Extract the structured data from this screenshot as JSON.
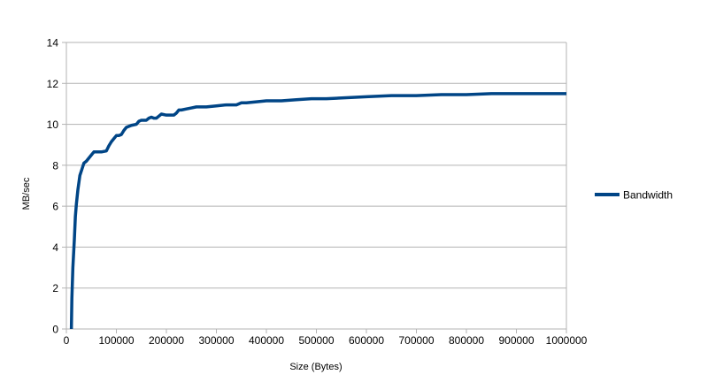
{
  "chart_data": {
    "type": "line",
    "title": "",
    "xlabel": "Size (Bytes)",
    "ylabel": "MB/sec",
    "xlim": [
      0,
      1000000
    ],
    "ylim": [
      0,
      14
    ],
    "x_ticks": [
      0,
      100000,
      200000,
      300000,
      400000,
      500000,
      600000,
      700000,
      800000,
      900000,
      1000000
    ],
    "y_ticks": [
      0,
      2,
      4,
      6,
      8,
      10,
      12,
      14
    ],
    "x_tick_labels": [
      "0",
      "100000",
      "200000",
      "300000",
      "400000",
      "500000",
      "600000",
      "700000",
      "800000",
      "900000",
      "1000000"
    ],
    "y_tick_labels": [
      "0",
      "2",
      "4",
      "6",
      "8",
      "10",
      "12",
      "14"
    ],
    "grid": "horizontal",
    "legend_position": "right",
    "series": [
      {
        "name": "Bandwidth",
        "color": "#004586",
        "x": [
          10000,
          11000,
          13000,
          16000,
          18000,
          20000,
          23000,
          27000,
          31000,
          35000,
          40000,
          45000,
          50000,
          55000,
          60000,
          70000,
          80000,
          85000,
          90000,
          95000,
          100000,
          105000,
          110000,
          115000,
          120000,
          125000,
          130000,
          140000,
          145000,
          150000,
          160000,
          165000,
          170000,
          175000,
          180000,
          185000,
          190000,
          200000,
          210000,
          215000,
          220000,
          225000,
          230000,
          240000,
          250000,
          260000,
          280000,
          300000,
          320000,
          340000,
          350000,
          360000,
          380000,
          400000,
          430000,
          460000,
          490000,
          520000,
          560000,
          600000,
          650000,
          700000,
          750000,
          800000,
          850000,
          900000,
          950000,
          1000000
        ],
        "values": [
          0,
          1.5,
          3.0,
          4.4,
          5.5,
          6.1,
          6.8,
          7.5,
          7.8,
          8.1,
          8.2,
          8.35,
          8.5,
          8.65,
          8.65,
          8.65,
          8.7,
          8.95,
          9.15,
          9.3,
          9.45,
          9.45,
          9.5,
          9.7,
          9.85,
          9.9,
          9.95,
          10.0,
          10.15,
          10.2,
          10.2,
          10.3,
          10.35,
          10.3,
          10.3,
          10.4,
          10.5,
          10.45,
          10.45,
          10.45,
          10.55,
          10.7,
          10.7,
          10.75,
          10.8,
          10.85,
          10.85,
          10.9,
          10.95,
          10.95,
          11.05,
          11.05,
          11.1,
          11.15,
          11.15,
          11.2,
          11.25,
          11.25,
          11.3,
          11.35,
          11.4,
          11.4,
          11.45,
          11.45,
          11.5,
          11.5,
          11.5,
          11.5
        ]
      }
    ]
  }
}
